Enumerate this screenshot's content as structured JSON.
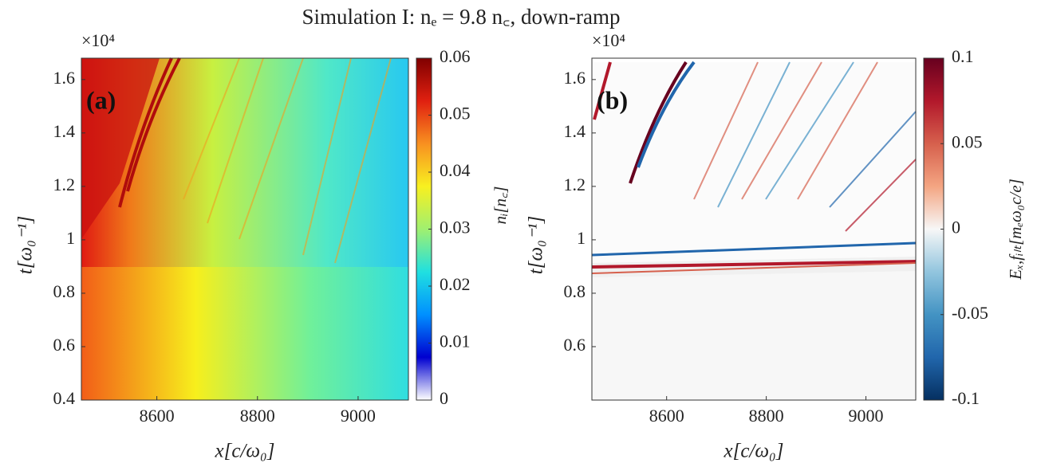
{
  "title": "Simulation I: nₑ = 9.8 n꜀, down-ramp",
  "chart_data": [
    {
      "type": "heatmap",
      "panel_label": "(a)",
      "xlabel": "x[c/ω₀]",
      "ylabel": "t[ω₀⁻¹]",
      "y_multiplier": "×10⁴",
      "xlim": [
        8450,
        9100
      ],
      "xticks": [
        8600,
        8800,
        9000
      ],
      "ylim": [
        0.4,
        1.68
      ],
      "yticks": [
        0.4,
        0.6,
        0.8,
        1,
        1.2,
        1.4,
        1.6
      ],
      "colorbar_label": "nᵢ[n꜀]",
      "clim": [
        0,
        0.06
      ],
      "cticks": [
        0,
        0.01,
        0.02,
        0.03,
        0.04,
        0.05,
        0.06
      ],
      "colormap": [
        "#ffffff",
        "#0000d0",
        "#0090ff",
        "#20e0e0",
        "#a0f070",
        "#f8f020",
        "#f89020",
        "#e02010",
        "#800000"
      ]
    },
    {
      "type": "heatmap",
      "panel_label": "(b)",
      "xlabel": "x[c/ω₀]",
      "ylabel": "t[ω₀⁻¹]",
      "y_multiplier": "×10⁴",
      "xlim": [
        8450,
        9100
      ],
      "xticks": [
        8600,
        8800,
        9000
      ],
      "ylim": [
        0.4,
        1.68
      ],
      "yticks": [
        0.6,
        0.8,
        1,
        1.2,
        1.4,
        1.6
      ],
      "colorbar_label": "Eₓ,fᵢₗₜ[mₑω₀c/e]",
      "clim": [
        -0.1,
        0.1
      ],
      "cticks": [
        -0.1,
        -0.05,
        0,
        0.05,
        0.1
      ],
      "colormap": [
        "#053061",
        "#2166ac",
        "#4393c3",
        "#92c5de",
        "#f7f7f7",
        "#f4a582",
        "#d6604d",
        "#b2182b",
        "#67001f"
      ]
    }
  ]
}
